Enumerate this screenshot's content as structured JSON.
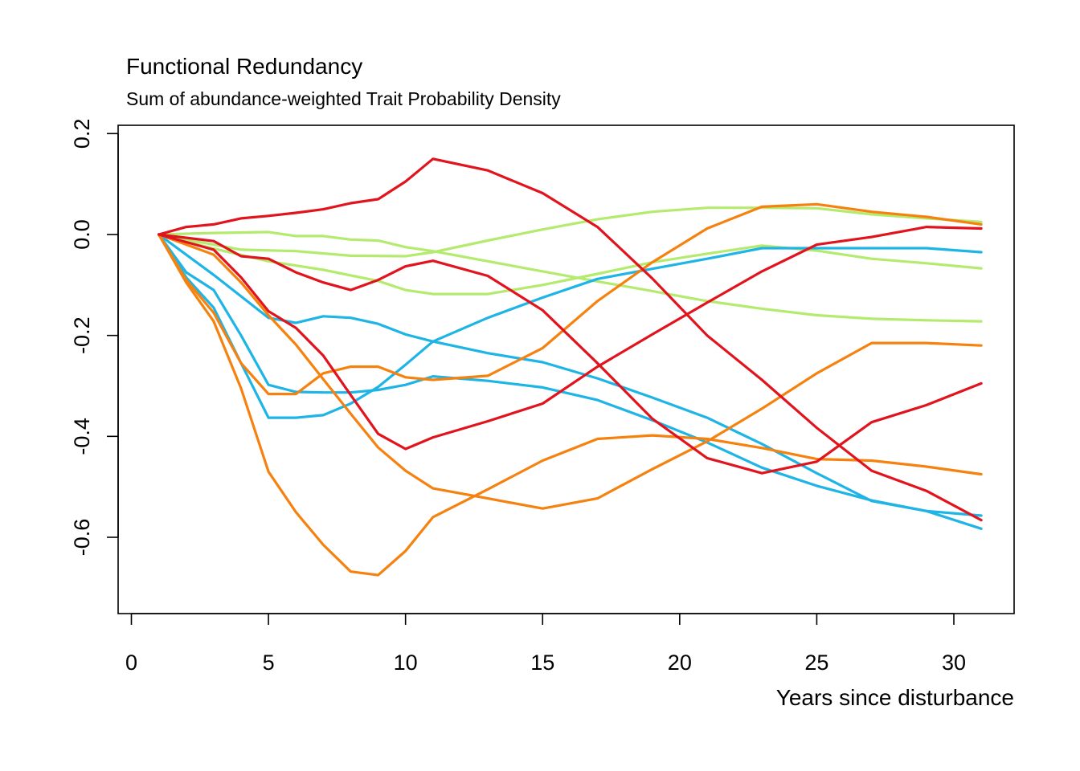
{
  "chart_data": {
    "type": "line",
    "title": "Functional Redundancy",
    "subtitle": "Sum of abundance-weighted Trait Probability Density",
    "xlabel": "Years since disturbance",
    "ylabel": "",
    "xlim": [
      0,
      32
    ],
    "ylim": [
      -0.75,
      0.2
    ],
    "xticks": [
      0,
      5,
      10,
      15,
      20,
      25,
      30
    ],
    "yticks": [
      -0.6,
      -0.4,
      -0.2,
      0.0,
      0.2
    ],
    "xtick_labels": [
      "0",
      "5",
      "10",
      "15",
      "20",
      "25",
      "30"
    ],
    "ytick_labels": [
      "-0.6",
      "-0.4",
      "-0.2",
      "0.0",
      "0.2"
    ],
    "grid": false,
    "legend": "none",
    "colors": {
      "green": "#b4eb6e",
      "blue": "#1eb4e6",
      "orange": "#f5820f",
      "red": "#e1141e"
    },
    "series": [
      {
        "color": "green",
        "x": [
          1,
          3,
          5,
          6,
          7,
          8,
          9,
          10,
          11,
          13,
          15,
          17,
          19,
          21,
          23,
          25,
          27,
          29,
          31
        ],
        "y": [
          0.0,
          0.003,
          0.005,
          -0.003,
          -0.003,
          -0.01,
          -0.012,
          -0.025,
          -0.033,
          -0.053,
          -0.073,
          -0.093,
          -0.112,
          -0.132,
          -0.147,
          -0.16,
          -0.167,
          -0.17,
          -0.172
        ]
      },
      {
        "color": "green",
        "x": [
          1,
          4,
          6,
          8,
          10,
          11,
          13,
          15,
          17,
          19,
          21,
          23,
          25,
          27,
          29,
          31
        ],
        "y": [
          0.0,
          -0.03,
          -0.033,
          -0.042,
          -0.043,
          -0.035,
          -0.012,
          0.01,
          0.03,
          0.045,
          0.053,
          0.053,
          0.052,
          0.04,
          0.032,
          0.025
        ]
      },
      {
        "color": "green",
        "x": [
          1,
          3,
          5,
          7,
          9,
          10,
          11,
          13,
          15,
          17,
          19,
          21,
          23,
          25,
          27,
          29,
          31
        ],
        "y": [
          0.0,
          -0.028,
          -0.053,
          -0.07,
          -0.092,
          -0.11,
          -0.118,
          -0.118,
          -0.1,
          -0.078,
          -0.055,
          -0.038,
          -0.022,
          -0.032,
          -0.048,
          -0.057,
          -0.067
        ]
      },
      {
        "color": "blue",
        "x": [
          1,
          2,
          3,
          4,
          5,
          6,
          7,
          8,
          9,
          10,
          11,
          13,
          15,
          17,
          19,
          21,
          23,
          25,
          27,
          29,
          31
        ],
        "y": [
          0.0,
          -0.075,
          -0.11,
          -0.2,
          -0.298,
          -0.312,
          -0.313,
          -0.313,
          -0.308,
          -0.298,
          -0.281,
          -0.29,
          -0.303,
          -0.328,
          -0.368,
          -0.412,
          -0.462,
          -0.498,
          -0.527,
          -0.548,
          -0.583
        ]
      },
      {
        "color": "blue",
        "x": [
          1,
          3,
          5,
          6,
          7,
          8,
          9,
          10,
          11,
          13,
          15,
          17,
          19,
          21,
          23,
          25,
          27,
          29,
          31
        ],
        "y": [
          0.0,
          -0.08,
          -0.165,
          -0.175,
          -0.162,
          -0.165,
          -0.177,
          -0.198,
          -0.212,
          -0.235,
          -0.253,
          -0.285,
          -0.323,
          -0.363,
          -0.415,
          -0.473,
          -0.528,
          -0.548,
          -0.557
        ]
      },
      {
        "color": "blue",
        "x": [
          1,
          2,
          3,
          4,
          5,
          6,
          7,
          8,
          9,
          10,
          11,
          13,
          15,
          17,
          19,
          21,
          23,
          25,
          27,
          29,
          31
        ],
        "y": [
          0.0,
          -0.085,
          -0.145,
          -0.255,
          -0.363,
          -0.363,
          -0.358,
          -0.335,
          -0.302,
          -0.258,
          -0.212,
          -0.165,
          -0.125,
          -0.088,
          -0.068,
          -0.048,
          -0.027,
          -0.027,
          -0.027,
          -0.027,
          -0.035
        ]
      },
      {
        "color": "orange",
        "x": [
          1,
          2,
          3,
          4,
          5,
          6,
          7,
          8,
          9,
          10,
          11,
          13,
          15,
          17,
          19,
          21,
          23,
          25,
          27,
          29,
          31
        ],
        "y": [
          0.0,
          -0.095,
          -0.172,
          -0.305,
          -0.47,
          -0.55,
          -0.615,
          -0.668,
          -0.675,
          -0.627,
          -0.56,
          -0.505,
          -0.448,
          -0.405,
          -0.398,
          -0.405,
          -0.423,
          -0.445,
          -0.448,
          -0.46,
          -0.475
        ]
      },
      {
        "color": "orange",
        "x": [
          1,
          2,
          3,
          4,
          5,
          6,
          7,
          8,
          9,
          10,
          11,
          13,
          15,
          17,
          19,
          21,
          23,
          25,
          27,
          29,
          31
        ],
        "y": [
          0.0,
          -0.09,
          -0.155,
          -0.255,
          -0.316,
          -0.316,
          -0.275,
          -0.262,
          -0.262,
          -0.283,
          -0.288,
          -0.28,
          -0.225,
          -0.132,
          -0.055,
          0.012,
          0.055,
          0.06,
          0.045,
          0.035,
          0.02
        ]
      },
      {
        "color": "orange",
        "x": [
          1,
          3,
          4,
          5,
          6,
          7,
          8,
          9,
          10,
          11,
          13,
          15,
          17,
          19,
          21,
          23,
          25,
          27,
          29,
          31
        ],
        "y": [
          0.0,
          -0.04,
          -0.095,
          -0.16,
          -0.218,
          -0.287,
          -0.355,
          -0.422,
          -0.468,
          -0.503,
          -0.523,
          -0.543,
          -0.523,
          -0.465,
          -0.41,
          -0.345,
          -0.275,
          -0.215,
          -0.215,
          -0.22
        ]
      },
      {
        "color": "red",
        "x": [
          1,
          2,
          3,
          4,
          5,
          6,
          7,
          8,
          9,
          10,
          11,
          13,
          15,
          17,
          19,
          21,
          23,
          25,
          27,
          29,
          31
        ],
        "y": [
          0.0,
          0.015,
          0.02,
          0.032,
          0.037,
          0.043,
          0.05,
          0.062,
          0.07,
          0.105,
          0.15,
          0.127,
          0.082,
          0.015,
          -0.087,
          -0.2,
          -0.288,
          -0.383,
          -0.468,
          -0.508,
          -0.566
        ]
      },
      {
        "color": "red",
        "x": [
          1,
          3,
          4,
          5,
          6,
          7,
          8,
          9,
          10,
          11,
          13,
          15,
          17,
          19,
          21,
          23,
          25,
          27,
          29,
          31
        ],
        "y": [
          0.0,
          -0.013,
          -0.043,
          -0.048,
          -0.075,
          -0.095,
          -0.11,
          -0.09,
          -0.063,
          -0.052,
          -0.082,
          -0.15,
          -0.255,
          -0.365,
          -0.443,
          -0.473,
          -0.45,
          -0.372,
          -0.338,
          -0.295
        ]
      },
      {
        "color": "red",
        "x": [
          1,
          3,
          4,
          5,
          6,
          7,
          8,
          9,
          10,
          11,
          13,
          15,
          17,
          19,
          21,
          23,
          25,
          27,
          29,
          31
        ],
        "y": [
          0.0,
          -0.03,
          -0.085,
          -0.152,
          -0.185,
          -0.24,
          -0.318,
          -0.395,
          -0.425,
          -0.402,
          -0.37,
          -0.335,
          -0.262,
          -0.198,
          -0.135,
          -0.073,
          -0.02,
          -0.005,
          0.015,
          0.012
        ]
      }
    ]
  }
}
